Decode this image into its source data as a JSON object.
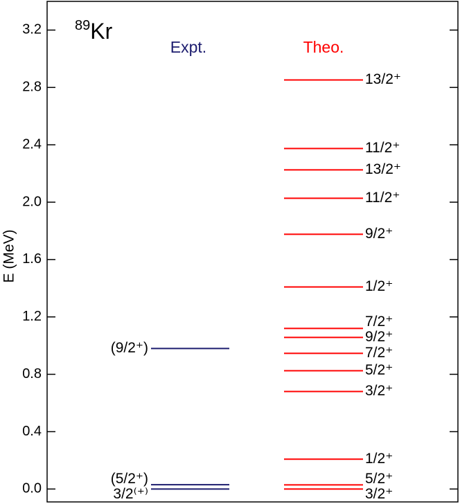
{
  "chart_data": {
    "type": "level_scheme",
    "title": {
      "mass": "89",
      "element": "Kr"
    },
    "y_label": "E (MeV)",
    "ylim": [
      -0.09,
      3.4
    ],
    "yticks": [
      {
        "value": 0,
        "label": "0.0"
      },
      0.4,
      0.8,
      1.2,
      1.6,
      {
        "value": 2,
        "label": "2.0"
      },
      2.4,
      2.8,
      3.2
    ],
    "series": [
      {
        "name": "Expt.",
        "color": "#1c1c6e",
        "label_side": "left",
        "values": [
          0,
          0.03,
          0.98
        ],
        "labels": [
          "3/2⁽⁺⁾",
          "(5/2⁺)",
          "(9/2⁺)"
        ]
      },
      {
        "name": "Theo.",
        "color": "#ff0000",
        "label_side": "right",
        "values": [
          0,
          0.029,
          0.208,
          0.68,
          0.825,
          0.946,
          1.057,
          1.12,
          1.409,
          1.776,
          2.027,
          2.225,
          2.374,
          2.852
        ],
        "labels": [
          "3/2⁺",
          "5/2⁺",
          "1/2⁺",
          "3/2⁺",
          "5/2⁺",
          "7/2⁺",
          "9/2⁺",
          "7/2⁺",
          "1/2⁺",
          "9/2⁺",
          "11/2⁺",
          "13/2⁺",
          "11/2⁺",
          "13/2⁺"
        ]
      }
    ]
  }
}
